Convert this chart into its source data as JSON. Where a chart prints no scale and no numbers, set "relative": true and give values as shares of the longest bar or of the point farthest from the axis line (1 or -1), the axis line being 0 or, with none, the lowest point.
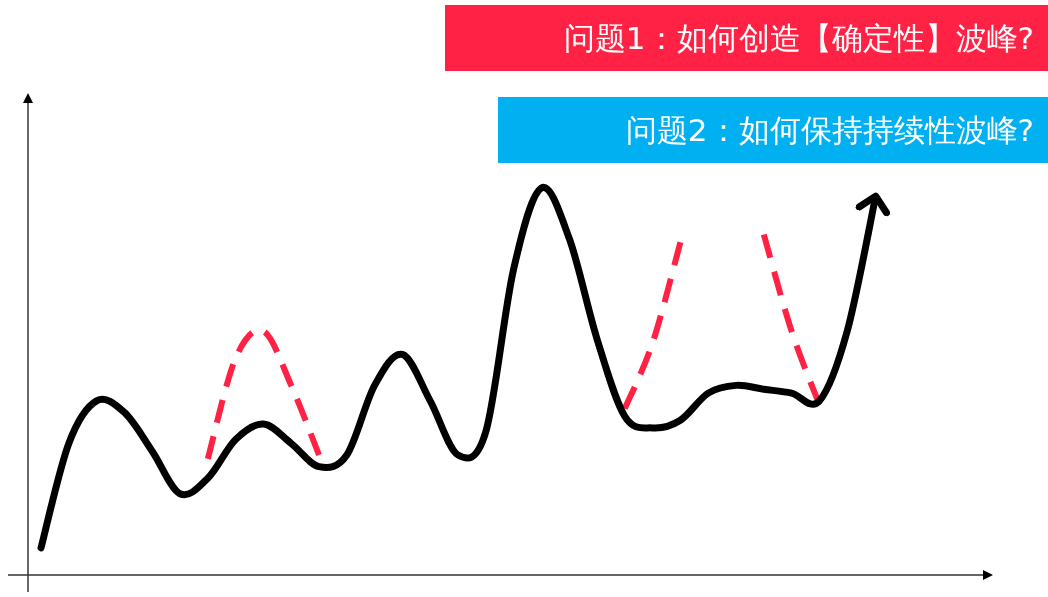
{
  "chart_data": {
    "type": "line",
    "relative": true,
    "categories": [
      null,
      null,
      null,
      null,
      null,
      null,
      null,
      null,
      null,
      null,
      null,
      null,
      null,
      null,
      null,
      null,
      null,
      null,
      null,
      null,
      null,
      null,
      null,
      null,
      null,
      null,
      null,
      null,
      null,
      null,
      null
    ],
    "series": [
      {
        "color": "#ff2244",
        "line_style": "dashed",
        "values": [
          null,
          null,
          null,
          null,
          null,
          null,
          0.3,
          0.56,
          0.63,
          0.49,
          0.31,
          null,
          null,
          null,
          null,
          null,
          null,
          null,
          null,
          null,
          null,
          0.43,
          0.6,
          0.86,
          null,
          null,
          0.88,
          0.63,
          0.44,
          null,
          null
        ]
      },
      {
        "color": "#000000",
        "line_style": "solid",
        "values": [
          0.07,
          0.34,
          0.45,
          0.42,
          0.32,
          0.21,
          0.25,
          0.35,
          0.39,
          0.34,
          0.28,
          0.31,
          0.49,
          0.57,
          0.45,
          0.31,
          0.37,
          0.79,
          1.0,
          0.87,
          0.61,
          0.41,
          0.38,
          0.4,
          0.47,
          0.49,
          0.48,
          0.47,
          0.45,
          0.63,
          0.97
        ]
      }
    ],
    "annotations": [
      "问题1：如何创造【确定性】波峰?",
      "问题2：如何保持持续性波峰?"
    ]
  }
}
